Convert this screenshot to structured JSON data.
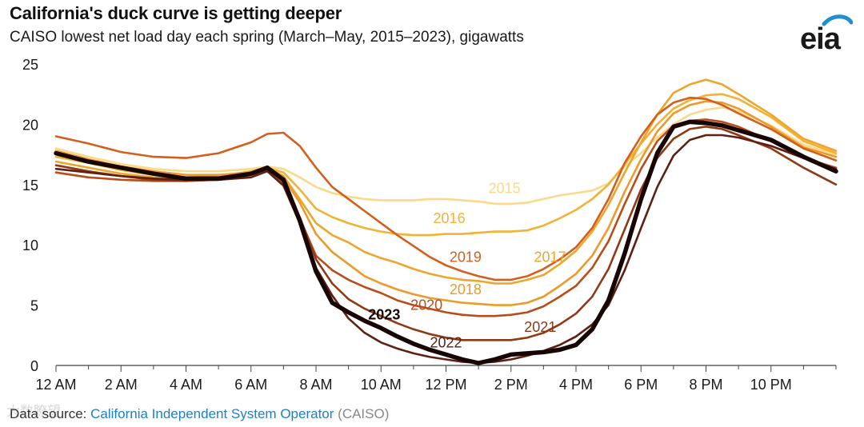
{
  "header": {
    "title": "California's duck curve is getting deeper",
    "subtitle": "CAISO lowest net load day each spring (March–May, 2015–2023), gigawatts",
    "logo_text": "eia"
  },
  "footer": {
    "source_label": "Data source:",
    "source_name": "California Independent System Operator",
    "source_abbr": "(CAISO)",
    "watermark": "大数瞭望"
  },
  "chart_data": {
    "type": "line",
    "title": "California's duck curve is getting deeper",
    "xlabel": "",
    "ylabel": "gigawatts",
    "ylim": [
      0,
      25
    ],
    "xlim": [
      0,
      24
    ],
    "yticks": [
      0,
      5,
      10,
      15,
      20,
      25
    ],
    "xticks": [
      {
        "value": 0,
        "label": "12 AM"
      },
      {
        "value": 2,
        "label": "2 AM"
      },
      {
        "value": 4,
        "label": "4 AM"
      },
      {
        "value": 6,
        "label": "6 AM"
      },
      {
        "value": 8,
        "label": "8 AM"
      },
      {
        "value": 10,
        "label": "10 AM"
      },
      {
        "value": 12,
        "label": "12 PM"
      },
      {
        "value": 14,
        "label": "2 PM"
      },
      {
        "value": 16,
        "label": "4 PM"
      },
      {
        "value": 18,
        "label": "6 PM"
      },
      {
        "value": 20,
        "label": "8 PM"
      },
      {
        "value": 22,
        "label": "10 PM"
      }
    ],
    "hours": [
      0,
      1,
      2,
      3,
      4,
      5,
      6,
      6.5,
      7,
      7.5,
      8,
      8.5,
      9,
      9.5,
      10,
      10.5,
      11,
      11.5,
      12,
      12.5,
      13,
      13.5,
      14,
      14.5,
      15,
      15.5,
      16,
      16.5,
      17,
      17.5,
      18,
      18.5,
      19,
      19.5,
      20,
      20.5,
      21,
      22,
      23,
      24
    ],
    "series": [
      {
        "name": "2015",
        "color": "#fbd98a",
        "label_x": 13.8,
        "label_y": 14.3,
        "values": [
          18.0,
          17.3,
          16.7,
          16.3,
          16.1,
          16.1,
          16.3,
          16.5,
          16.3,
          15.6,
          14.8,
          14.3,
          14.0,
          13.8,
          13.7,
          13.7,
          13.7,
          13.8,
          13.8,
          13.7,
          13.6,
          13.4,
          13.4,
          13.5,
          13.8,
          14.1,
          14.3,
          14.5,
          15.1,
          16.5,
          17.6,
          18.9,
          20.0,
          20.8,
          21.2,
          21.4,
          21.1,
          19.9,
          18.3,
          17.5
        ]
      },
      {
        "name": "2016",
        "color": "#f2b233",
        "label_x": 12.1,
        "label_y": 11.8,
        "values": [
          17.3,
          16.8,
          16.2,
          15.8,
          15.6,
          15.7,
          16.1,
          16.4,
          16.0,
          14.6,
          13.0,
          12.3,
          11.8,
          11.4,
          11.1,
          10.9,
          10.8,
          10.8,
          10.9,
          10.9,
          11.0,
          11.1,
          11.1,
          11.2,
          11.6,
          12.2,
          12.9,
          13.8,
          15.0,
          16.7,
          18.4,
          20.0,
          21.3,
          22.0,
          22.4,
          22.5,
          22.1,
          20.6,
          18.6,
          17.6
        ]
      },
      {
        "name": "2017",
        "color": "#eda62b",
        "label_x": 15.2,
        "label_y": 8.6,
        "values": [
          16.9,
          16.4,
          15.9,
          15.6,
          15.4,
          15.5,
          16.0,
          16.4,
          15.7,
          13.8,
          11.8,
          10.8,
          10.2,
          9.4,
          8.9,
          8.5,
          8.0,
          7.6,
          7.3,
          7.1,
          7.0,
          6.8,
          6.8,
          7.1,
          7.5,
          8.4,
          9.5,
          11.1,
          13.3,
          16.0,
          18.5,
          20.8,
          22.6,
          23.3,
          23.7,
          23.3,
          22.5,
          20.8,
          18.8,
          17.8
        ]
      },
      {
        "name": "2018",
        "color": "#ec9a2a",
        "label_x": 12.6,
        "label_y": 5.9,
        "values": [
          17.8,
          17.1,
          16.5,
          16.1,
          15.8,
          15.8,
          16.0,
          16.3,
          15.6,
          13.5,
          10.9,
          9.4,
          8.4,
          7.4,
          6.8,
          6.3,
          5.9,
          5.6,
          5.4,
          5.2,
          5.1,
          5.0,
          5.0,
          5.2,
          5.7,
          6.6,
          7.6,
          9.1,
          11.4,
          14.4,
          17.1,
          19.4,
          20.9,
          21.6,
          21.9,
          21.8,
          21.3,
          19.8,
          18.1,
          17.3
        ]
      },
      {
        "name": "2019",
        "color": "#d45f1c",
        "label_x": 12.6,
        "label_y": 8.6,
        "values": [
          19.0,
          18.4,
          17.7,
          17.3,
          17.2,
          17.6,
          18.5,
          19.2,
          19.3,
          18.2,
          16.4,
          14.8,
          13.8,
          12.8,
          11.8,
          10.8,
          9.9,
          9.0,
          8.3,
          7.8,
          7.4,
          7.1,
          7.1,
          7.4,
          8.0,
          8.8,
          9.8,
          11.4,
          13.8,
          16.8,
          19.0,
          20.8,
          21.8,
          22.2,
          22.1,
          21.6,
          20.9,
          19.6,
          18.0,
          17.0
        ]
      },
      {
        "name": "2020",
        "color": "#b84d1a",
        "label_x": 11.4,
        "label_y": 4.6,
        "values": [
          16.0,
          15.6,
          15.4,
          15.3,
          15.3,
          15.4,
          15.8,
          16.2,
          15.1,
          12.2,
          9.1,
          7.9,
          7.1,
          6.5,
          6.0,
          5.4,
          5.0,
          4.7,
          4.4,
          4.2,
          4.1,
          4.1,
          4.2,
          4.4,
          4.9,
          5.7,
          6.6,
          8.1,
          10.3,
          13.4,
          16.3,
          18.6,
          19.9,
          20.3,
          20.4,
          20.2,
          19.8,
          18.6,
          17.2,
          16.4
        ]
      },
      {
        "name": "2021",
        "color": "#8f3a16",
        "label_x": 14.9,
        "label_y": 2.8,
        "values": [
          16.6,
          16.1,
          15.7,
          15.4,
          15.3,
          15.4,
          15.8,
          16.3,
          15.3,
          12.3,
          8.8,
          6.8,
          5.5,
          4.7,
          4.1,
          3.5,
          3.0,
          2.6,
          2.3,
          2.1,
          2.1,
          2.1,
          2.1,
          2.3,
          2.7,
          3.4,
          4.3,
          5.7,
          8.0,
          11.3,
          14.6,
          17.2,
          18.8,
          19.6,
          19.8,
          19.6,
          19.1,
          18.0,
          16.4,
          15.0
        ]
      },
      {
        "name": "2022",
        "color": "#5e2012",
        "label_x": 12.0,
        "label_y": 1.5,
        "values": [
          16.3,
          16.0,
          15.7,
          15.5,
          15.4,
          15.4,
          15.6,
          16.1,
          14.9,
          11.8,
          8.1,
          5.8,
          3.9,
          2.7,
          1.9,
          1.4,
          1.0,
          0.7,
          0.5,
          0.3,
          0.2,
          0.3,
          0.5,
          0.8,
          1.2,
          1.7,
          2.4,
          3.4,
          5.0,
          7.9,
          11.4,
          14.8,
          17.4,
          18.7,
          19.1,
          19.1,
          18.9,
          18.2,
          17.2,
          16.3
        ]
      },
      {
        "name": "2023",
        "color": "#180604",
        "label_x": 10.1,
        "label_y": 3.8,
        "values": [
          17.6,
          16.9,
          16.4,
          15.9,
          15.5,
          15.5,
          15.9,
          16.4,
          15.4,
          12.0,
          7.8,
          5.2,
          4.4,
          3.7,
          3.1,
          2.4,
          1.8,
          1.3,
          0.9,
          0.5,
          0.2,
          0.5,
          0.9,
          1.0,
          1.1,
          1.3,
          1.7,
          3.0,
          5.4,
          9.3,
          13.8,
          17.6,
          19.8,
          20.2,
          20.1,
          19.9,
          19.5,
          18.7,
          17.3,
          16.1
        ]
      }
    ]
  }
}
